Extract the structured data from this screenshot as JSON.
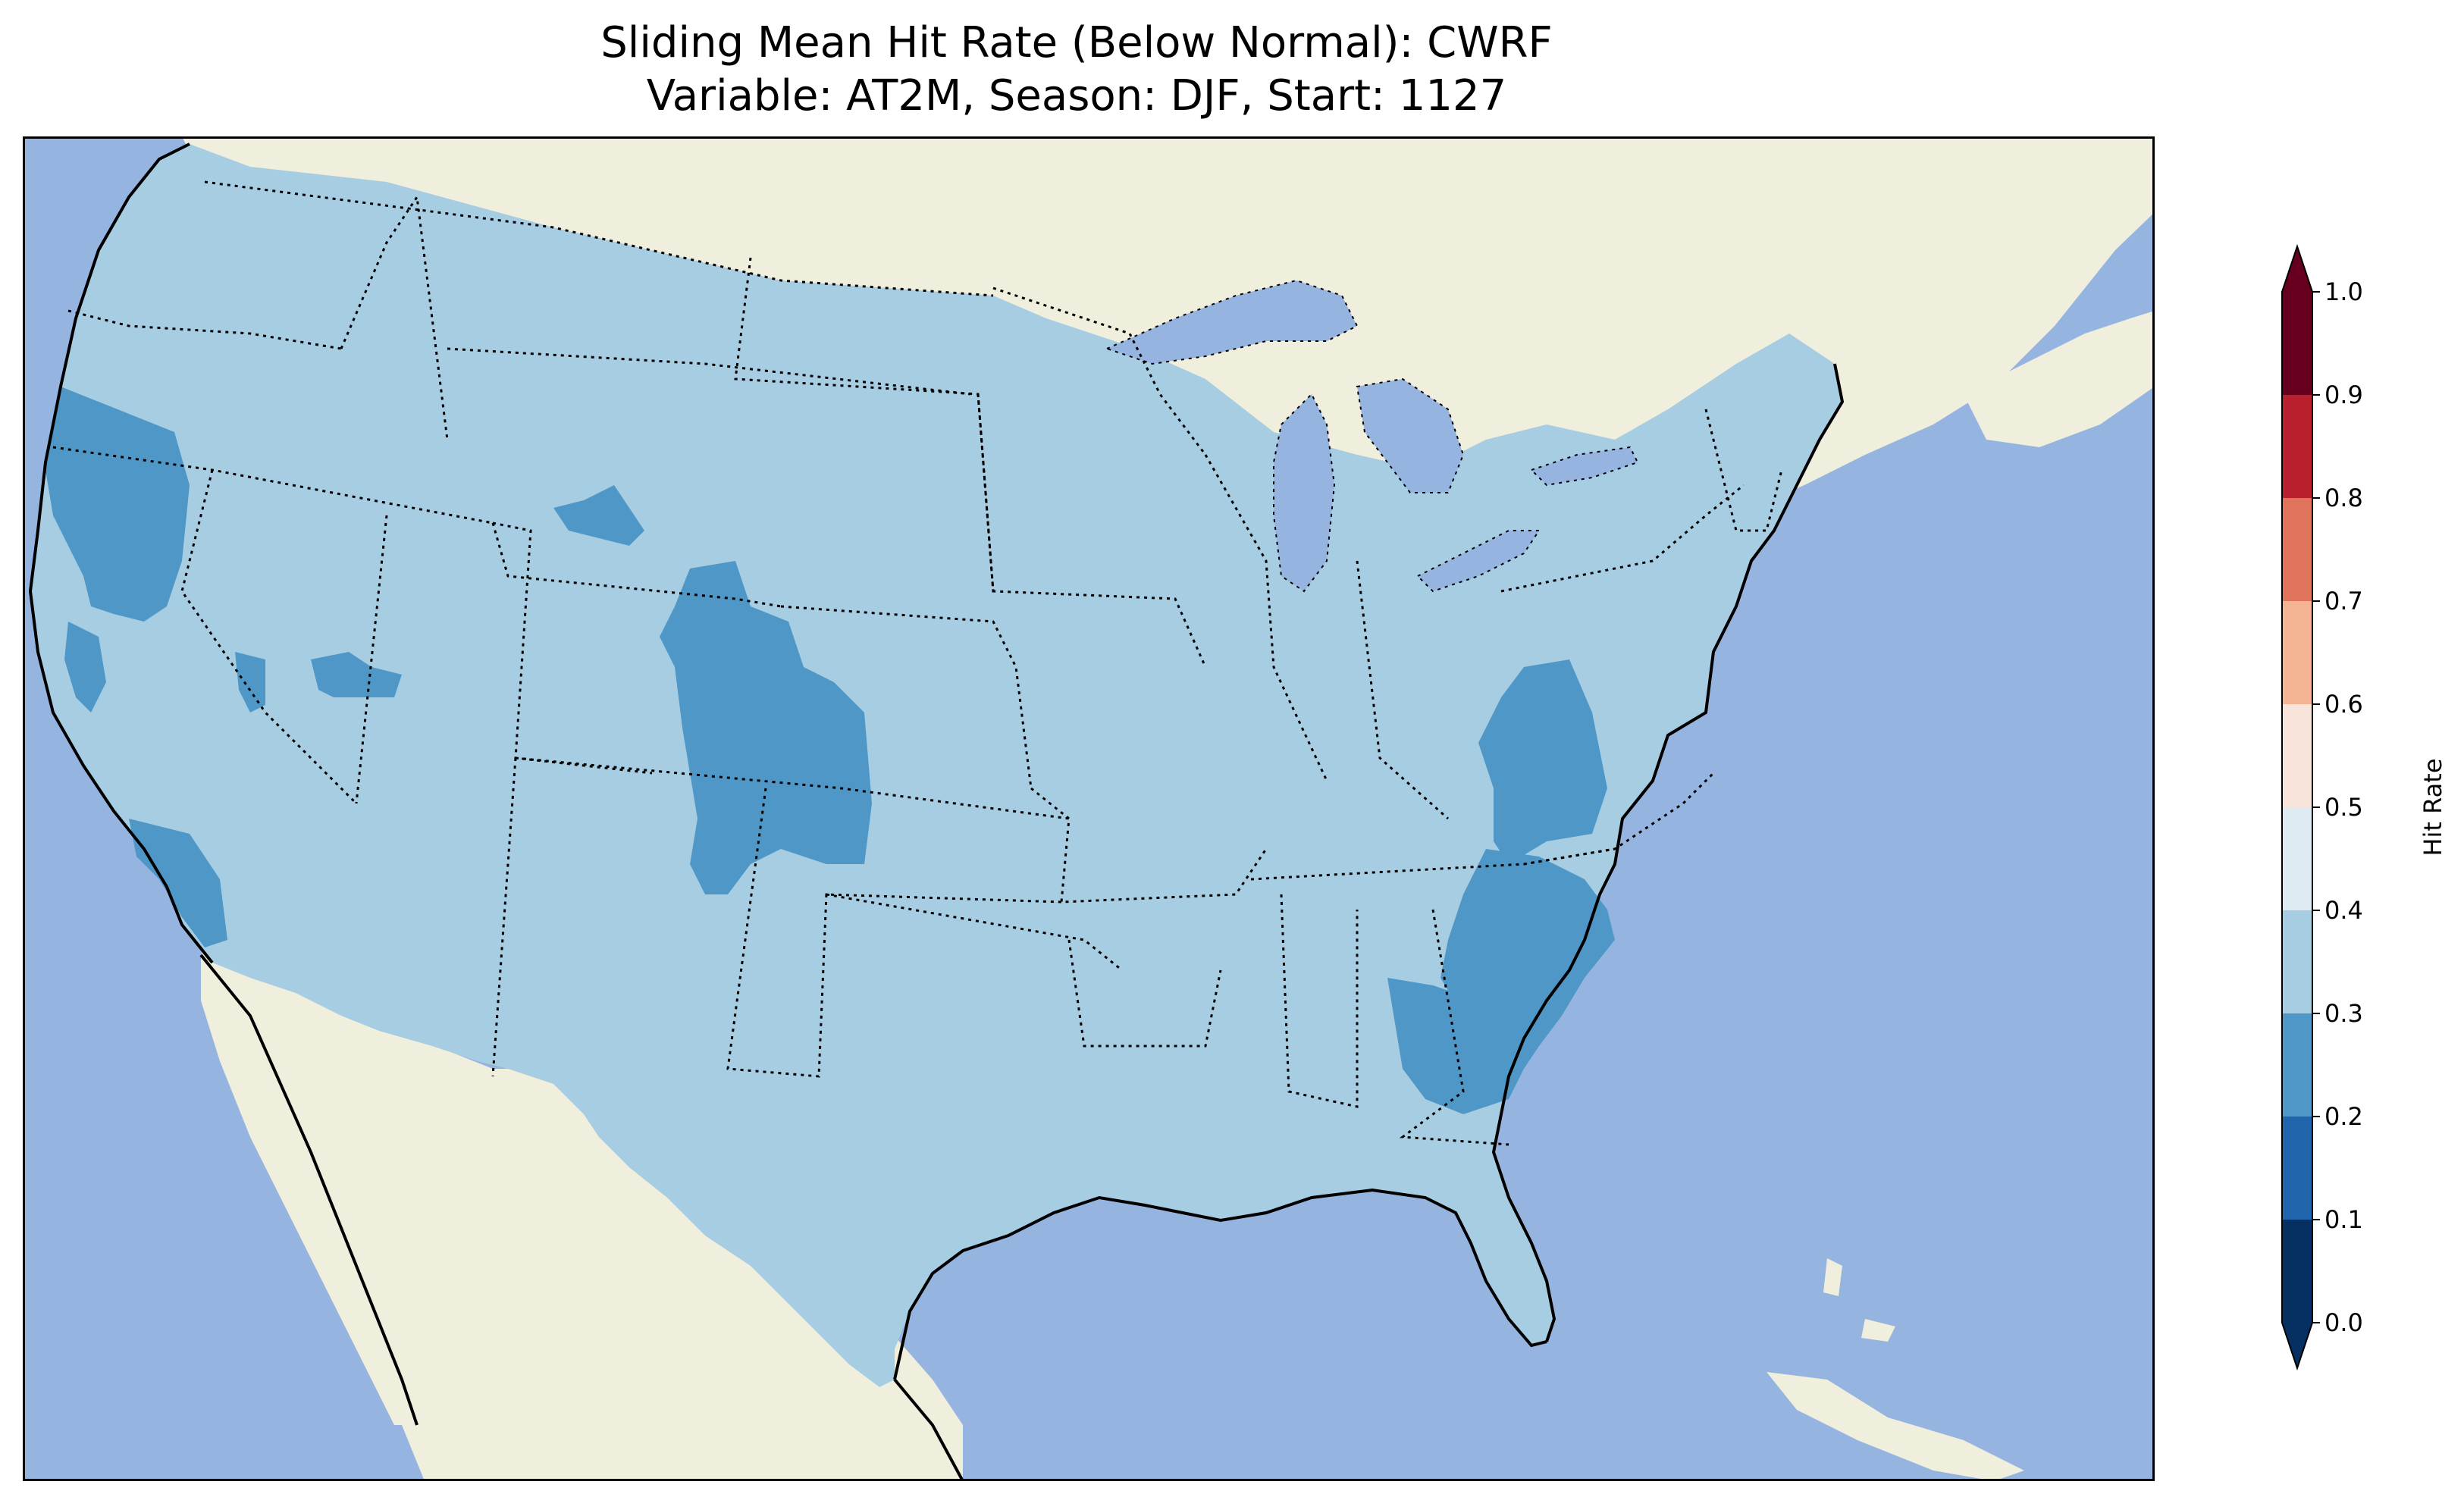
{
  "title": {
    "line1": "Sliding Mean Hit Rate (Below Normal): CWRF",
    "line2": "Variable: AT2M, Season: DJF, Start: 1127"
  },
  "colorbar": {
    "label": "Hit Rate",
    "ticks": [
      "0.0",
      "0.1",
      "0.2",
      "0.3",
      "0.4",
      "0.5",
      "0.6",
      "0.7",
      "0.8",
      "0.9",
      "1.0"
    ],
    "bins": [
      {
        "from": 0.0,
        "to": 0.1,
        "color": "#053061"
      },
      {
        "from": 0.1,
        "to": 0.2,
        "color": "#2166ac"
      },
      {
        "from": 0.2,
        "to": 0.3,
        "color": "#4f97c6"
      },
      {
        "from": 0.3,
        "to": 0.4,
        "color": "#a7cde3"
      },
      {
        "from": 0.4,
        "to": 0.5,
        "color": "#dfebf3"
      },
      {
        "from": 0.5,
        "to": 0.6,
        "color": "#f8e4da"
      },
      {
        "from": 0.6,
        "to": 0.7,
        "color": "#f4b393"
      },
      {
        "from": 0.7,
        "to": 0.8,
        "color": "#df735c"
      },
      {
        "from": 0.8,
        "to": 0.9,
        "color": "#b8202e"
      },
      {
        "from": 0.9,
        "to": 1.0,
        "color": "#67001f"
      }
    ],
    "extend": "both"
  },
  "map": {
    "ocean_color": "#96b4e0",
    "land_color": "#f0eedc",
    "us_fill_color": "#a7cde3",
    "low_hit_color": "#4f97c6"
  }
}
